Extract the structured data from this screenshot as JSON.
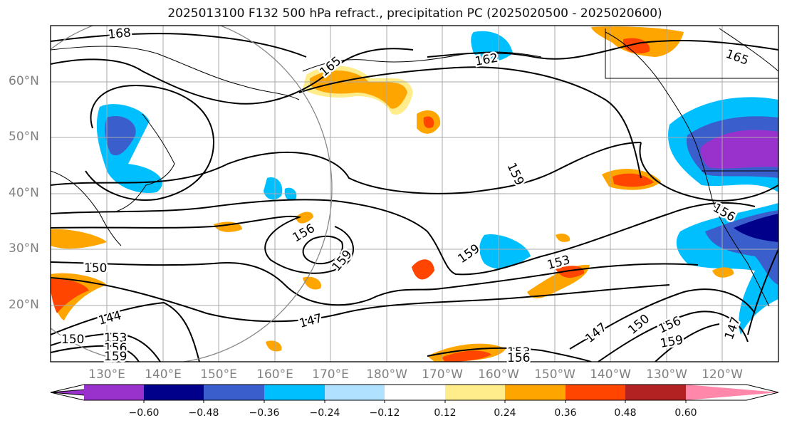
{
  "title": "2025013100 F132 500 hPa refract., precipitation PC (2025020500 - 2025020600)",
  "map": {
    "lat_labels": [
      "60°N",
      "50°N",
      "40°N",
      "30°N",
      "20°N"
    ],
    "lon_labels": [
      "130°E",
      "140°E",
      "150°E",
      "160°E",
      "170°E",
      "180°W",
      "170°W",
      "160°W",
      "150°W",
      "140°W",
      "130°W",
      "120°W"
    ],
    "contour_labels": [
      "168",
      "165",
      "162",
      "165",
      "159",
      "156",
      "156",
      "159",
      "159",
      "153",
      "150",
      "147",
      "144",
      "147",
      "150",
      "156",
      "159",
      "153",
      "156",
      "147",
      "150",
      "153",
      "156",
      "159"
    ]
  },
  "colorbar": {
    "ticks": [
      "−0.60",
      "−0.48",
      "−0.36",
      "−0.24",
      "−0.12",
      "0.12",
      "0.24",
      "0.36",
      "0.48",
      "0.60"
    ],
    "colors": [
      "#9932cc",
      "#00008b",
      "#3a5fcd",
      "#00bfff",
      "#b0e2ff",
      "#ffffff",
      "#ffec8b",
      "#ffa500",
      "#ff4500",
      "#b22222",
      "#ff88aa"
    ]
  }
}
